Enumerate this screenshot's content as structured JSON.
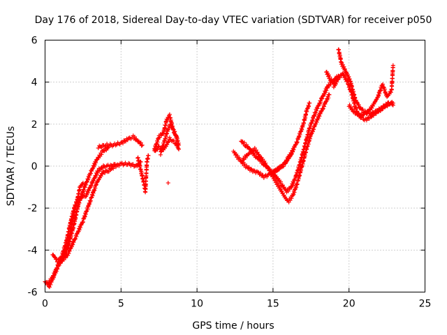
{
  "chart_data": {
    "type": "scatter",
    "title": "Day 176 of 2018, Sidereal Day-to-day VTEC variation (SDTVAR) for receiver p050",
    "xlabel": "GPS time / hours",
    "ylabel": "SDTVAR / TECUs",
    "xlim": [
      0,
      25
    ],
    "ylim": [
      -6,
      6
    ],
    "xticks": [
      0,
      5,
      10,
      15,
      20,
      25
    ],
    "yticks": [
      -6,
      -4,
      -2,
      0,
      2,
      4,
      6
    ],
    "grid": true,
    "marker": "+",
    "colors": {
      "series": "#ff0000",
      "grid": "#a0a0a0",
      "axis": "#000000"
    },
    "series": [
      {
        "name": "SDTVAR",
        "tracks": [
          [
            [
              0.0,
              -5.5
            ],
            [
              0.3,
              -5.7
            ],
            [
              0.6,
              -5.2
            ],
            [
              0.9,
              -4.7
            ],
            [
              1.3,
              -4.2
            ],
            [
              1.6,
              -3.6
            ],
            [
              1.9,
              -2.8
            ],
            [
              2.2,
              -1.8
            ],
            [
              2.6,
              -1.0
            ],
            [
              3.0,
              -0.3
            ],
            [
              3.4,
              0.3
            ],
            [
              3.8,
              0.7
            ],
            [
              4.2,
              0.9
            ]
          ],
          [
            [
              0.2,
              -5.6
            ],
            [
              0.5,
              -5.3
            ],
            [
              0.8,
              -4.8
            ],
            [
              1.1,
              -4.3
            ],
            [
              1.4,
              -3.6
            ],
            [
              1.7,
              -2.6
            ],
            [
              2.0,
              -1.8
            ],
            [
              2.3,
              -1.5
            ],
            [
              2.7,
              -1.4
            ],
            [
              3.1,
              -0.8
            ],
            [
              3.5,
              -0.2
            ],
            [
              3.9,
              0.0
            ],
            [
              4.3,
              0.0
            ],
            [
              4.6,
              0.1
            ]
          ],
          [
            [
              0.5,
              -4.2
            ],
            [
              0.8,
              -4.5
            ],
            [
              1.1,
              -4.4
            ],
            [
              1.4,
              -4.0
            ],
            [
              1.7,
              -3.0
            ],
            [
              2.0,
              -2.0
            ],
            [
              2.3,
              -1.0
            ],
            [
              2.5,
              -0.8
            ]
          ],
          [
            [
              1.0,
              -4.6
            ],
            [
              1.5,
              -4.2
            ],
            [
              2.0,
              -3.4
            ],
            [
              2.5,
              -2.6
            ],
            [
              3.0,
              -1.6
            ],
            [
              3.4,
              -0.8
            ],
            [
              3.8,
              -0.3
            ],
            [
              4.2,
              -0.2
            ],
            [
              4.6,
              0.0
            ],
            [
              5.0,
              0.1
            ],
            [
              5.5,
              0.1
            ],
            [
              6.0,
              0.0
            ],
            [
              6.3,
              0.2
            ]
          ],
          [
            [
              3.5,
              0.9
            ],
            [
              4.0,
              1.0
            ],
            [
              4.5,
              1.0
            ],
            [
              5.0,
              1.1
            ],
            [
              5.5,
              1.3
            ],
            [
              5.8,
              1.4
            ],
            [
              6.1,
              1.2
            ],
            [
              6.4,
              1.0
            ]
          ],
          [
            [
              6.1,
              0.4
            ],
            [
              6.3,
              -0.2
            ],
            [
              6.5,
              -0.8
            ],
            [
              6.6,
              -1.2
            ],
            [
              6.7,
              0.2
            ],
            [
              6.8,
              0.5
            ]
          ],
          [
            [
              7.2,
              0.8
            ],
            [
              7.5,
              1.4
            ],
            [
              7.8,
              1.6
            ],
            [
              8.0,
              2.2
            ],
            [
              8.2,
              2.4
            ],
            [
              8.4,
              1.8
            ],
            [
              8.6,
              1.5
            ],
            [
              8.8,
              1.0
            ]
          ],
          [
            [
              7.2,
              0.7
            ],
            [
              7.5,
              0.9
            ],
            [
              7.8,
              0.8
            ],
            [
              8.0,
              1.0
            ],
            [
              8.2,
              1.3
            ],
            [
              8.4,
              1.2
            ],
            [
              8.6,
              1.1
            ],
            [
              8.8,
              0.8
            ]
          ],
          [
            [
              7.6,
              0.6
            ],
            [
              7.9,
              1.3
            ],
            [
              8.1,
              1.8
            ],
            [
              8.3,
              2.0
            ],
            [
              8.5,
              1.6
            ],
            [
              8.7,
              1.3
            ]
          ],
          [
            [
              8.1,
              -0.8
            ]
          ],
          [
            [
              12.4,
              0.7
            ],
            [
              12.8,
              0.3
            ],
            [
              13.2,
              0.0
            ],
            [
              13.6,
              -0.2
            ],
            [
              14.0,
              -0.3
            ],
            [
              14.4,
              -0.5
            ],
            [
              14.8,
              -0.4
            ],
            [
              15.2,
              -0.2
            ],
            [
              15.6,
              0.0
            ],
            [
              16.0,
              0.4
            ],
            [
              16.3,
              0.7
            ]
          ],
          [
            [
              12.9,
              1.2
            ],
            [
              13.2,
              1.0
            ],
            [
              13.5,
              0.8
            ],
            [
              13.8,
              0.5
            ],
            [
              14.1,
              0.3
            ],
            [
              14.4,
              0.1
            ],
            [
              14.8,
              -0.2
            ],
            [
              15.2,
              -0.5
            ],
            [
              15.6,
              -0.9
            ],
            [
              15.9,
              -1.2
            ],
            [
              16.2,
              -1.0
            ],
            [
              16.5,
              -0.5
            ],
            [
              16.8,
              0.2
            ],
            [
              17.1,
              1.0
            ],
            [
              17.4,
              1.8
            ],
            [
              17.8,
              2.6
            ],
            [
              18.2,
              3.2
            ],
            [
              18.6,
              3.8
            ],
            [
              19.0,
              4.1
            ],
            [
              19.3,
              4.3
            ]
          ],
          [
            [
              13.0,
              0.3
            ],
            [
              13.4,
              0.6
            ],
            [
              13.8,
              0.8
            ],
            [
              14.2,
              0.4
            ],
            [
              14.6,
              0.0
            ],
            [
              15.0,
              -0.5
            ],
            [
              15.4,
              -1.0
            ],
            [
              15.8,
              -1.5
            ],
            [
              16.0,
              -1.7
            ],
            [
              16.3,
              -1.4
            ],
            [
              16.6,
              -0.8
            ],
            [
              16.9,
              0.0
            ],
            [
              17.2,
              0.8
            ],
            [
              17.5,
              1.5
            ],
            [
              17.9,
              2.2
            ],
            [
              18.3,
              2.8
            ],
            [
              18.7,
              3.4
            ]
          ],
          [
            [
              15.0,
              -0.3
            ],
            [
              15.4,
              -0.1
            ],
            [
              15.8,
              0.1
            ],
            [
              16.2,
              0.6
            ],
            [
              16.6,
              1.2
            ],
            [
              17.0,
              2.0
            ],
            [
              17.2,
              2.6
            ],
            [
              17.4,
              3.0
            ]
          ],
          [
            [
              19.0,
              3.8
            ],
            [
              19.3,
              4.2
            ],
            [
              19.6,
              4.4
            ],
            [
              19.9,
              4.0
            ],
            [
              20.2,
              3.4
            ],
            [
              20.5,
              2.6
            ],
            [
              20.8,
              2.3
            ],
            [
              21.1,
              2.2
            ],
            [
              21.5,
              2.4
            ],
            [
              21.9,
              2.6
            ],
            [
              22.3,
              2.8
            ],
            [
              22.7,
              3.0
            ],
            [
              22.9,
              2.9
            ]
          ],
          [
            [
              19.3,
              5.6
            ],
            [
              19.5,
              4.9
            ],
            [
              19.8,
              4.5
            ],
            [
              20.1,
              4.0
            ],
            [
              20.4,
              3.2
            ],
            [
              20.7,
              2.8
            ],
            [
              21.0,
              2.6
            ],
            [
              21.4,
              2.5
            ],
            [
              21.8,
              2.6
            ],
            [
              22.2,
              2.8
            ],
            [
              22.6,
              3.0
            ],
            [
              22.9,
              3.0
            ]
          ],
          [
            [
              18.5,
              4.5
            ],
            [
              18.8,
              4.1
            ],
            [
              19.1,
              3.9
            ]
          ],
          [
            [
              20.0,
              2.9
            ],
            [
              20.3,
              2.6
            ],
            [
              20.7,
              2.4
            ],
            [
              21.1,
              2.5
            ],
            [
              21.5,
              2.8
            ],
            [
              21.9,
              3.3
            ],
            [
              22.2,
              3.9
            ],
            [
              22.5,
              3.3
            ],
            [
              22.8,
              3.6
            ],
            [
              22.9,
              4.8
            ]
          ]
        ]
      }
    ]
  }
}
